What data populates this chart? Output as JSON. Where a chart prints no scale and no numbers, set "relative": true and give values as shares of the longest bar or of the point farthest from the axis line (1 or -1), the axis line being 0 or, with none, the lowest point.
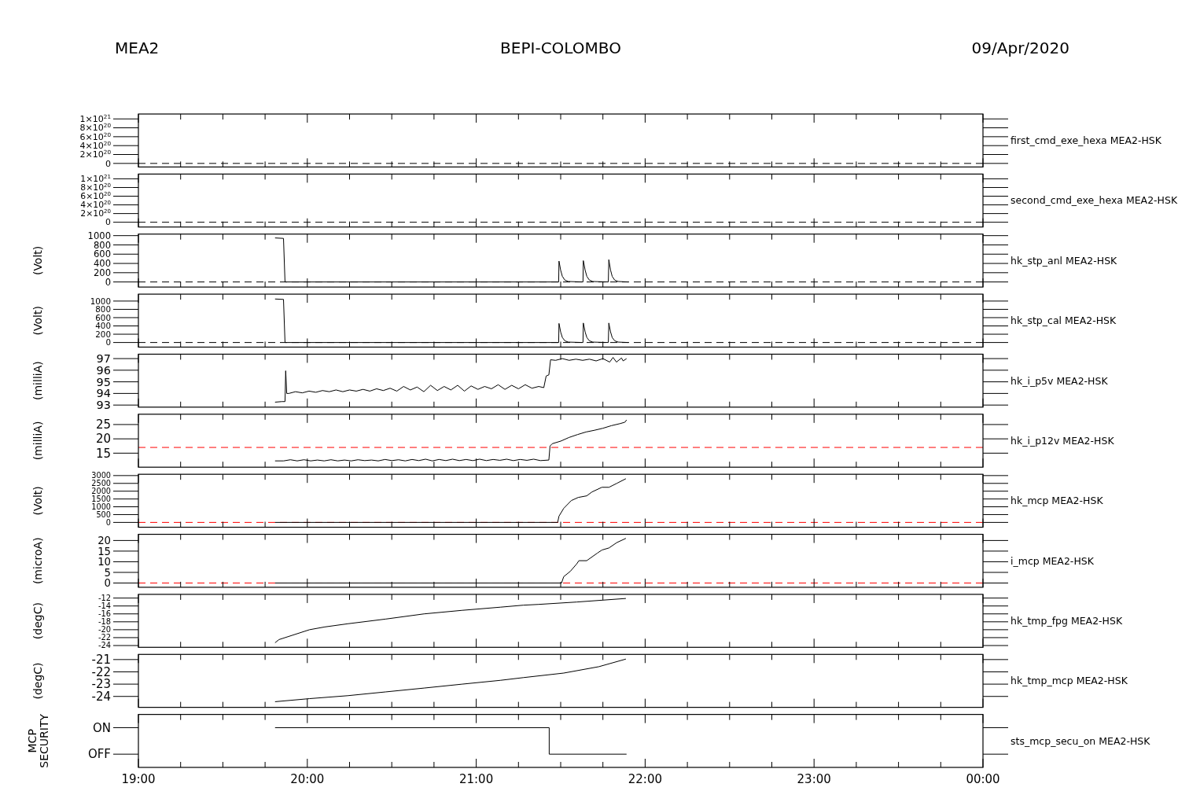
{
  "chart_data": [
    {
      "type": "line",
      "title": "BEPI-COLOMBO",
      "annotations": [
        "MEA2",
        "09/Apr/2020"
      ],
      "y2label": "first_cmd_exe_hexa MEA2-HSK",
      "xlim": [
        19,
        24
      ],
      "xticks": [
        {
          "value": 19,
          "label": null
        },
        {
          "value": 19.25,
          "label": null
        },
        {
          "value": 19.5,
          "label": null
        },
        {
          "value": 19.75,
          "label": null
        },
        {
          "value": 20,
          "label": null
        },
        {
          "value": 20.25,
          "label": null
        },
        {
          "value": 20.5,
          "label": null
        },
        {
          "value": 20.75,
          "label": null
        },
        {
          "value": 21,
          "label": null
        },
        {
          "value": 21.25,
          "label": null
        },
        {
          "value": 21.5,
          "label": null
        },
        {
          "value": 21.75,
          "label": null
        },
        {
          "value": 22,
          "label": null
        },
        {
          "value": 22.25,
          "label": null
        },
        {
          "value": 22.5,
          "label": null
        },
        {
          "value": 22.75,
          "label": null
        },
        {
          "value": 23,
          "label": null
        },
        {
          "value": 23.25,
          "label": null
        },
        {
          "value": 23.5,
          "label": null
        },
        {
          "value": 23.75,
          "label": null
        },
        {
          "value": 24,
          "label": null
        }
      ],
      "ylim": [
        -8e+19,
        1.11e+21
      ],
      "yticks": [
        0,
        {
          "value": 2e+20,
          "label": "2×10$^{20}$"
        },
        {
          "value": 4e+20,
          "label": "4×10$^{20}$"
        },
        {
          "value": 6e+20,
          "label": "6×10$^{20}$"
        },
        {
          "value": 8e+20,
          "label": "8×10$^{20}$"
        },
        {
          "value": 1e+21,
          "label": "1×10$^{21}$"
        }
      ],
      "tick_labels": "y",
      "ref_lines": [
        {
          "axis": "y",
          "value": 0,
          "color": "#000000",
          "line_style": "dashed"
        }
      ]
    },
    {
      "type": "line",
      "y2label": "second_cmd_exe_hexa MEA2-HSK",
      "xlim": [
        19,
        24
      ],
      "xticks": [
        {
          "value": 19,
          "label": null
        },
        {
          "value": 19.25,
          "label": null
        },
        {
          "value": 19.5,
          "label": null
        },
        {
          "value": 19.75,
          "label": null
        },
        {
          "value": 20,
          "label": null
        },
        {
          "value": 20.25,
          "label": null
        },
        {
          "value": 20.5,
          "label": null
        },
        {
          "value": 20.75,
          "label": null
        },
        {
          "value": 21,
          "label": null
        },
        {
          "value": 21.25,
          "label": null
        },
        {
          "value": 21.5,
          "label": null
        },
        {
          "value": 21.75,
          "label": null
        },
        {
          "value": 22,
          "label": null
        },
        {
          "value": 22.25,
          "label": null
        },
        {
          "value": 22.5,
          "label": null
        },
        {
          "value": 22.75,
          "label": null
        },
        {
          "value": 23,
          "label": null
        },
        {
          "value": 23.25,
          "label": null
        },
        {
          "value": 23.5,
          "label": null
        },
        {
          "value": 23.75,
          "label": null
        },
        {
          "value": 24,
          "label": null
        }
      ],
      "ylim": [
        -1.1e+20,
        1.11e+21
      ],
      "yticks": [
        0,
        {
          "value": 2e+20,
          "label": "2×10$^{20}$"
        },
        {
          "value": 4e+20,
          "label": "4×10$^{20}$"
        },
        {
          "value": 6e+20,
          "label": "6×10$^{20}$"
        },
        {
          "value": 8e+20,
          "label": "8×10$^{20}$"
        },
        {
          "value": 1e+21,
          "label": "1×10$^{21}$"
        }
      ],
      "tick_labels": "y",
      "ref_lines": [
        {
          "axis": "y",
          "value": 0,
          "color": "#000000",
          "line_style": "dashed"
        }
      ]
    },
    {
      "type": "line",
      "ylabel": "(Volt)",
      "y2label": "hk_stp_anl MEA2-HSK",
      "xlim": [
        19,
        24
      ],
      "xticks": [
        {
          "value": 19,
          "label": null
        },
        {
          "value": 19.25,
          "label": null
        },
        {
          "value": 19.5,
          "label": null
        },
        {
          "value": 19.75,
          "label": null
        },
        {
          "value": 20,
          "label": null
        },
        {
          "value": 20.25,
          "label": null
        },
        {
          "value": 20.5,
          "label": null
        },
        {
          "value": 20.75,
          "label": null
        },
        {
          "value": 21,
          "label": null
        },
        {
          "value": 21.25,
          "label": null
        },
        {
          "value": 21.5,
          "label": null
        },
        {
          "value": 21.75,
          "label": null
        },
        {
          "value": 22,
          "label": null
        },
        {
          "value": 22.25,
          "label": null
        },
        {
          "value": 22.5,
          "label": null
        },
        {
          "value": 22.75,
          "label": null
        },
        {
          "value": 23,
          "label": null
        },
        {
          "value": 23.25,
          "label": null
        },
        {
          "value": 23.5,
          "label": null
        },
        {
          "value": 23.75,
          "label": null
        },
        {
          "value": 24,
          "label": null
        }
      ],
      "ylim": [
        -110,
        1033
      ],
      "yticks": [
        0,
        200,
        400,
        600,
        800,
        1000
      ],
      "tick_labels": "y",
      "ref_lines": [
        {
          "axis": "y",
          "value": 0,
          "color": "#000000",
          "line_style": "dashed"
        }
      ],
      "series": [
        {
          "color": "#000000",
          "x": [
            19.809,
            19.859,
            19.868,
            21.488,
            21.49,
            21.5,
            21.51,
            21.525,
            21.545,
            21.632,
            21.634,
            21.645,
            21.655,
            21.67,
            21.69,
            21.782,
            21.785,
            21.795,
            21.805,
            21.82,
            21.84,
            21.9
          ],
          "values": [
            950,
            940,
            0,
            0,
            450,
            250,
            120,
            40,
            10,
            0,
            460,
            250,
            120,
            40,
            10,
            0,
            480,
            260,
            120,
            40,
            10,
            0
          ]
        }
      ]
    },
    {
      "type": "line",
      "ylabel": "(Volt)",
      "y2label": "hk_stp_cal MEA2-HSK",
      "xlim": [
        19,
        24
      ],
      "xticks": [
        {
          "value": 19,
          "label": null
        },
        {
          "value": 19.25,
          "label": null
        },
        {
          "value": 19.5,
          "label": null
        },
        {
          "value": 19.75,
          "label": null
        },
        {
          "value": 20,
          "label": null
        },
        {
          "value": 20.25,
          "label": null
        },
        {
          "value": 20.5,
          "label": null
        },
        {
          "value": 20.75,
          "label": null
        },
        {
          "value": 21,
          "label": null
        },
        {
          "value": 21.25,
          "label": null
        },
        {
          "value": 21.5,
          "label": null
        },
        {
          "value": 21.75,
          "label": null
        },
        {
          "value": 22,
          "label": null
        },
        {
          "value": 22.25,
          "label": null
        },
        {
          "value": 22.5,
          "label": null
        },
        {
          "value": 22.75,
          "label": null
        },
        {
          "value": 23,
          "label": null
        },
        {
          "value": 23.25,
          "label": null
        },
        {
          "value": 23.5,
          "label": null
        },
        {
          "value": 23.75,
          "label": null
        },
        {
          "value": 24,
          "label": null
        }
      ],
      "ylim": [
        -111,
        1167
      ],
      "yticks": [
        0,
        200,
        400,
        600,
        800,
        1000
      ],
      "tick_labels": "y",
      "ref_lines": [
        {
          "axis": "y",
          "value": 0,
          "color": "#000000",
          "line_style": "dashed"
        }
      ],
      "series": [
        {
          "color": "#000000",
          "x": [
            19.809,
            19.859,
            19.868,
            21.488,
            21.49,
            21.5,
            21.51,
            21.525,
            21.545,
            21.632,
            21.634,
            21.645,
            21.655,
            21.67,
            21.69,
            21.782,
            21.785,
            21.795,
            21.805,
            21.82,
            21.84,
            21.9
          ],
          "values": [
            1050,
            1040,
            0,
            0,
            460,
            250,
            120,
            40,
            10,
            0,
            470,
            250,
            120,
            40,
            10,
            0,
            470,
            260,
            120,
            40,
            10,
            0
          ]
        }
      ]
    },
    {
      "type": "line",
      "ylabel": "(milliA)",
      "y2label": "hk_i_p5v MEA2-HSK",
      "xlim": [
        19,
        24
      ],
      "xticks": [
        {
          "value": 19,
          "label": null
        },
        {
          "value": 19.25,
          "label": null
        },
        {
          "value": 19.5,
          "label": null
        },
        {
          "value": 19.75,
          "label": null
        },
        {
          "value": 20,
          "label": null
        },
        {
          "value": 20.25,
          "label": null
        },
        {
          "value": 20.5,
          "label": null
        },
        {
          "value": 20.75,
          "label": null
        },
        {
          "value": 21,
          "label": null
        },
        {
          "value": 21.25,
          "label": null
        },
        {
          "value": 21.5,
          "label": null
        },
        {
          "value": 21.75,
          "label": null
        },
        {
          "value": 22,
          "label": null
        },
        {
          "value": 22.25,
          "label": null
        },
        {
          "value": 22.5,
          "label": null
        },
        {
          "value": 22.75,
          "label": null
        },
        {
          "value": 23,
          "label": null
        },
        {
          "value": 23.25,
          "label": null
        },
        {
          "value": 23.5,
          "label": null
        },
        {
          "value": 23.75,
          "label": null
        },
        {
          "value": 24,
          "label": null
        }
      ],
      "ylim": [
        92.82,
        97.38
      ],
      "yticks": [
        93,
        94,
        95,
        96,
        97
      ],
      "tick_labels": "y",
      "series": [
        {
          "color": "#000000",
          "x": [
            19.809,
            19.85,
            19.868,
            19.872,
            19.878,
            19.891,
            19.93,
            19.97,
            20.01,
            20.05,
            20.09,
            20.13,
            20.17,
            20.21,
            20.25,
            20.29,
            20.33,
            20.37,
            20.41,
            20.45,
            20.49,
            20.53,
            20.57,
            20.61,
            20.65,
            20.69,
            20.73,
            20.77,
            20.81,
            20.85,
            20.89,
            20.93,
            20.97,
            21.01,
            21.05,
            21.09,
            21.13,
            21.17,
            21.21,
            21.25,
            21.29,
            21.33,
            21.37,
            21.4,
            21.414,
            21.43,
            21.44,
            21.47,
            21.51,
            21.55,
            21.59,
            21.63,
            21.67,
            21.71,
            21.75,
            21.79,
            21.81,
            21.83,
            21.86,
            21.87,
            21.89
          ],
          "values": [
            93.25,
            93.3,
            93.3,
            95.95,
            94.0,
            94.0,
            94.15,
            94.05,
            94.2,
            94.1,
            94.25,
            94.15,
            94.3,
            94.15,
            94.3,
            94.2,
            94.35,
            94.2,
            94.4,
            94.25,
            94.45,
            94.2,
            94.6,
            94.3,
            94.55,
            94.15,
            94.7,
            94.25,
            94.6,
            94.3,
            94.7,
            94.2,
            94.65,
            94.35,
            94.6,
            94.4,
            94.75,
            94.35,
            94.7,
            94.4,
            94.75,
            94.45,
            94.6,
            94.5,
            95.5,
            95.6,
            96.9,
            96.85,
            97.0,
            96.85,
            96.95,
            96.85,
            96.95,
            96.8,
            97.0,
            96.7,
            97.1,
            96.7,
            97.05,
            96.8,
            97.0
          ]
        }
      ]
    },
    {
      "type": "line",
      "ylabel": "(milliA)",
      "y2label": "hk_i_p12v MEA2-HSK",
      "xlim": [
        19,
        24
      ],
      "xticks": [
        {
          "value": 19,
          "label": null
        },
        {
          "value": 19.25,
          "label": null
        },
        {
          "value": 19.5,
          "label": null
        },
        {
          "value": 19.75,
          "label": null
        },
        {
          "value": 20,
          "label": null
        },
        {
          "value": 20.25,
          "label": null
        },
        {
          "value": 20.5,
          "label": null
        },
        {
          "value": 20.75,
          "label": null
        },
        {
          "value": 21,
          "label": null
        },
        {
          "value": 21.25,
          "label": null
        },
        {
          "value": 21.5,
          "label": null
        },
        {
          "value": 21.75,
          "label": null
        },
        {
          "value": 22,
          "label": null
        },
        {
          "value": 22.25,
          "label": null
        },
        {
          "value": 22.5,
          "label": null
        },
        {
          "value": 22.75,
          "label": null
        },
        {
          "value": 23,
          "label": null
        },
        {
          "value": 23.25,
          "label": null
        },
        {
          "value": 23.5,
          "label": null
        },
        {
          "value": 23.75,
          "label": null
        },
        {
          "value": 24,
          "label": null
        }
      ],
      "ylim": [
        10.1,
        28.6
      ],
      "yticks": [
        15,
        20,
        25
      ],
      "tick_labels": "y",
      "ref_lines": [
        {
          "axis": "y",
          "value": 17,
          "color": "#ff0000",
          "line_style": "dashed"
        }
      ],
      "series": [
        {
          "color": "#000000",
          "x": [
            19.809,
            19.86,
            19.9,
            19.94,
            19.98,
            20.02,
            20.06,
            20.1,
            20.14,
            20.18,
            20.22,
            20.26,
            20.3,
            20.34,
            20.38,
            20.42,
            20.46,
            20.5,
            20.54,
            20.58,
            20.62,
            20.66,
            20.7,
            20.74,
            20.78,
            20.82,
            20.86,
            20.9,
            20.94,
            20.98,
            21.02,
            21.06,
            21.1,
            21.14,
            21.18,
            21.22,
            21.26,
            21.3,
            21.34,
            21.38,
            21.43,
            21.437,
            21.45,
            21.5,
            21.55,
            21.6,
            21.65,
            21.7,
            21.75,
            21.8,
            21.85,
            21.88,
            21.89
          ],
          "values": [
            12.3,
            12.3,
            12.7,
            12.3,
            12.7,
            12.3,
            12.6,
            12.3,
            12.7,
            12.3,
            12.6,
            12.3,
            12.7,
            12.4,
            12.6,
            12.3,
            12.8,
            12.4,
            12.7,
            12.3,
            12.8,
            12.4,
            12.9,
            12.3,
            12.8,
            12.4,
            12.9,
            12.4,
            12.8,
            12.4,
            12.9,
            12.4,
            12.8,
            12.5,
            12.9,
            12.4,
            12.8,
            12.5,
            12.9,
            12.4,
            12.6,
            17.5,
            18.3,
            19.2,
            20.5,
            21.5,
            22.4,
            23.0,
            23.7,
            24.6,
            25.3,
            25.8,
            26.6
          ]
        }
      ]
    },
    {
      "type": "line",
      "ylabel": "(Volt)",
      "y2label": "hk_mcp MEA2-HSK",
      "xlim": [
        19,
        24
      ],
      "xticks": [
        {
          "value": 19,
          "label": null
        },
        {
          "value": 19.25,
          "label": null
        },
        {
          "value": 19.5,
          "label": null
        },
        {
          "value": 19.75,
          "label": null
        },
        {
          "value": 20,
          "label": null
        },
        {
          "value": 20.25,
          "label": null
        },
        {
          "value": 20.5,
          "label": null
        },
        {
          "value": 20.75,
          "label": null
        },
        {
          "value": 21,
          "label": null
        },
        {
          "value": 21.25,
          "label": null
        },
        {
          "value": 21.5,
          "label": null
        },
        {
          "value": 21.75,
          "label": null
        },
        {
          "value": 22,
          "label": null
        },
        {
          "value": 22.25,
          "label": null
        },
        {
          "value": 22.5,
          "label": null
        },
        {
          "value": 22.75,
          "label": null
        },
        {
          "value": 23,
          "label": null
        },
        {
          "value": 23.25,
          "label": null
        },
        {
          "value": 23.5,
          "label": null
        },
        {
          "value": 23.75,
          "label": null
        },
        {
          "value": 24,
          "label": null
        }
      ],
      "ylim": [
        -310,
        3084
      ],
      "yticks": [
        0,
        500,
        1000,
        1500,
        2000,
        2500,
        3000
      ],
      "tick_labels": "y",
      "ref_lines": [
        {
          "axis": "y",
          "value": 0,
          "color": "#ff0000",
          "line_style": "dashed"
        }
      ],
      "series": [
        {
          "color": "#000000",
          "x": [
            19.809,
            21.482,
            21.49,
            21.518,
            21.563,
            21.604,
            21.654,
            21.685,
            21.744,
            21.786,
            21.832,
            21.886
          ],
          "values": [
            0,
            0,
            400,
            900,
            1400,
            1600,
            1700,
            1950,
            2250,
            2250,
            2500,
            2800
          ]
        }
      ]
    },
    {
      "type": "line",
      "ylabel": "(microA)",
      "y2label": "i_mcp MEA2-HSK",
      "xlim": [
        19,
        24
      ],
      "xticks": [
        {
          "value": 19,
          "label": null
        },
        {
          "value": 19.25,
          "label": null
        },
        {
          "value": 19.5,
          "label": null
        },
        {
          "value": 19.75,
          "label": null
        },
        {
          "value": 20,
          "label": null
        },
        {
          "value": 20.25,
          "label": null
        },
        {
          "value": 20.5,
          "label": null
        },
        {
          "value": 20.75,
          "label": null
        },
        {
          "value": 21,
          "label": null
        },
        {
          "value": 21.25,
          "label": null
        },
        {
          "value": 21.5,
          "label": null
        },
        {
          "value": 21.75,
          "label": null
        },
        {
          "value": 22,
          "label": null
        },
        {
          "value": 22.25,
          "label": null
        },
        {
          "value": 22.5,
          "label": null
        },
        {
          "value": 22.75,
          "label": null
        },
        {
          "value": 23,
          "label": null
        },
        {
          "value": 23.25,
          "label": null
        },
        {
          "value": 23.5,
          "label": null
        },
        {
          "value": 23.75,
          "label": null
        },
        {
          "value": 24,
          "label": null
        }
      ],
      "ylim": [
        -2,
        22.9
      ],
      "yticks": [
        0,
        5,
        10,
        15,
        20
      ],
      "tick_labels": "y",
      "ref_lines": [
        {
          "axis": "y",
          "value": 0,
          "color": "#ff0000",
          "line_style": "dashed"
        }
      ],
      "series": [
        {
          "color": "#000000",
          "x": [
            19.809,
            21.505,
            21.518,
            21.557,
            21.595,
            21.608,
            21.654,
            21.716,
            21.744,
            21.786,
            21.832,
            21.886
          ],
          "values": [
            0,
            0,
            3,
            5.5,
            9,
            10.5,
            10.5,
            14,
            15.5,
            16.5,
            19,
            21
          ]
        }
      ]
    },
    {
      "type": "line",
      "ylabel": "(degC)",
      "y2label": "hk_tmp_fpg MEA2-HSK",
      "xlim": [
        19,
        24
      ],
      "xticks": [
        {
          "value": 19,
          "label": null
        },
        {
          "value": 19.25,
          "label": null
        },
        {
          "value": 19.5,
          "label": null
        },
        {
          "value": 19.75,
          "label": null
        },
        {
          "value": 20,
          "label": null
        },
        {
          "value": 20.25,
          "label": null
        },
        {
          "value": 20.5,
          "label": null
        },
        {
          "value": 20.75,
          "label": null
        },
        {
          "value": 21,
          "label": null
        },
        {
          "value": 21.25,
          "label": null
        },
        {
          "value": 21.5,
          "label": null
        },
        {
          "value": 21.75,
          "label": null
        },
        {
          "value": 22,
          "label": null
        },
        {
          "value": 22.25,
          "label": null
        },
        {
          "value": 22.5,
          "label": null
        },
        {
          "value": 22.75,
          "label": null
        },
        {
          "value": 23,
          "label": null
        },
        {
          "value": 23.25,
          "label": null
        },
        {
          "value": 23.5,
          "label": null
        },
        {
          "value": 23.75,
          "label": null
        },
        {
          "value": 24,
          "label": null
        }
      ],
      "ylim": [
        -24.45,
        -11.06
      ],
      "yticks": [
        -24,
        -22,
        -20,
        -18,
        -16,
        -14,
        -12
      ],
      "tick_labels": "y",
      "series": [
        {
          "color": "#000000",
          "x": [
            19.809,
            19.832,
            20.013,
            20.103,
            20.239,
            20.465,
            20.691,
            20.917,
            21.143,
            21.278,
            21.369,
            21.595,
            21.886
          ],
          "values": [
            -23.3,
            -22.5,
            -20.0,
            -19.3,
            -18.5,
            -17.3,
            -16.0,
            -15.1,
            -14.3,
            -13.8,
            -13.6,
            -13.0,
            -12.1
          ]
        }
      ]
    },
    {
      "type": "line",
      "ylabel": "(degC)",
      "y2label": "hk_tmp_mcp MEA2-HSK",
      "xlim": [
        19,
        24
      ],
      "xticks": [
        {
          "value": 19,
          "label": null
        },
        {
          "value": 19.25,
          "label": null
        },
        {
          "value": 19.5,
          "label": null
        },
        {
          "value": 19.75,
          "label": null
        },
        {
          "value": 20,
          "label": null
        },
        {
          "value": 20.25,
          "label": null
        },
        {
          "value": 20.5,
          "label": null
        },
        {
          "value": 20.75,
          "label": null
        },
        {
          "value": 21,
          "label": null
        },
        {
          "value": 21.25,
          "label": null
        },
        {
          "value": 21.5,
          "label": null
        },
        {
          "value": 21.75,
          "label": null
        },
        {
          "value": 22,
          "label": null
        },
        {
          "value": 22.25,
          "label": null
        },
        {
          "value": 22.5,
          "label": null
        },
        {
          "value": 22.75,
          "label": null
        },
        {
          "value": 23,
          "label": null
        },
        {
          "value": 23.25,
          "label": null
        },
        {
          "value": 23.5,
          "label": null
        },
        {
          "value": 23.75,
          "label": null
        },
        {
          "value": 24,
          "label": null
        }
      ],
      "ylim": [
        -24.89,
        -20.58
      ],
      "yticks": [
        -24,
        -23,
        -22,
        -21
      ],
      "tick_labels": "y",
      "series": [
        {
          "color": "#000000",
          "x": [
            19.809,
            20.013,
            20.239,
            20.465,
            20.691,
            20.917,
            21.143,
            21.278,
            21.518,
            21.726,
            21.886
          ],
          "values": [
            -24.43,
            -24.18,
            -23.94,
            -23.63,
            -23.32,
            -23.0,
            -22.69,
            -22.47,
            -22.1,
            -21.58,
            -20.96
          ]
        }
      ]
    },
    {
      "type": "line",
      "ylabel": "MCP\nSECURITY",
      "y2label": "sts_mcp_secu_on MEA2-HSK",
      "xlim": [
        19,
        24
      ],
      "xticks": [
        {
          "value": 19,
          "label": "19:00"
        },
        {
          "value": 19.25,
          "label": null
        },
        {
          "value": 19.5,
          "label": null
        },
        {
          "value": 19.75,
          "label": null
        },
        {
          "value": 20,
          "label": "20:00"
        },
        {
          "value": 20.25,
          "label": null
        },
        {
          "value": 20.5,
          "label": null
        },
        {
          "value": 20.75,
          "label": null
        },
        {
          "value": 21,
          "label": "21:00"
        },
        {
          "value": 21.25,
          "label": null
        },
        {
          "value": 21.5,
          "label": null
        },
        {
          "value": 21.75,
          "label": null
        },
        {
          "value": 22,
          "label": "22:00"
        },
        {
          "value": 22.25,
          "label": null
        },
        {
          "value": 22.5,
          "label": null
        },
        {
          "value": 22.75,
          "label": null
        },
        {
          "value": 23,
          "label": "23:00"
        },
        {
          "value": 23.25,
          "label": null
        },
        {
          "value": 23.5,
          "label": null
        },
        {
          "value": 23.75,
          "label": null
        },
        {
          "value": 24,
          "label": "00:00"
        }
      ],
      "relative": true,
      "y_categories": [
        "ON",
        "OFF"
      ],
      "series": [
        {
          "color": "#000000",
          "x": [
            19.809,
            21.432,
            21.432,
            21.89
          ],
          "values": [
            1,
            1,
            0,
            0
          ]
        }
      ]
    }
  ]
}
